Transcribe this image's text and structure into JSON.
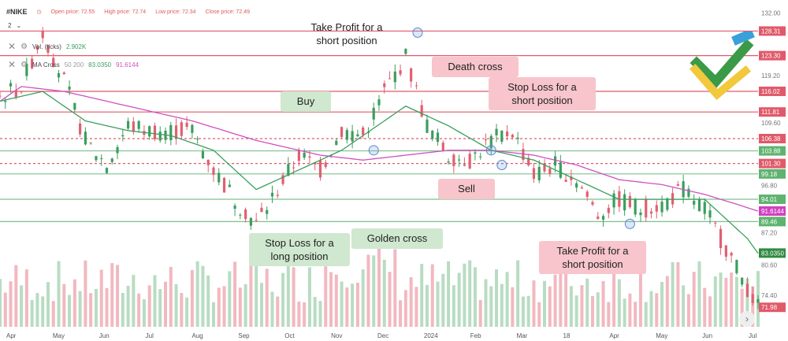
{
  "header": {
    "symbol": "#NIKE",
    "open_label": "Open price: 72.55",
    "high_label": "High price: 72.74",
    "low_label": "Low price: 72.34",
    "close_label": "Close price: 72.49",
    "interval": "2"
  },
  "indicators": {
    "volume": {
      "name": "Vol. (ticks)",
      "value": "2.902K"
    },
    "ma": {
      "name": "MA Cross",
      "params": "50 200",
      "fast_value": "83.0350",
      "slow_value": "91.6144"
    }
  },
  "colors": {
    "up": "#3b9e5e",
    "down": "#e06070",
    "fast_ma": "#3b9e5e",
    "slow_ma": "#d050c0",
    "line_red": "#e05a6a",
    "line_green": "#7fbf8f",
    "green_box": "#cfe8cf",
    "pink_box": "#f7c5cb"
  },
  "annotations": {
    "take_profit_top": "Take Profit for a short position",
    "death_cross": "Death cross",
    "stop_loss_short": "Stop Loss for a short position",
    "buy": "Buy",
    "sell": "Sell",
    "stop_loss_long": "Stop Loss for a long position",
    "golden_cross": "Golden cross",
    "take_profit_bottom": "Take Profit for a short position"
  },
  "chart_data": {
    "type": "candlestick",
    "x_ticks": [
      "Apr",
      "May",
      "Jun",
      "Jul",
      "Aug",
      "Sep",
      "Oct",
      "Nov",
      "Dec",
      "2024",
      "Feb",
      "Mar",
      "18",
      "Apr",
      "May",
      "Jun",
      "Jul"
    ],
    "y_ticks": [
      132.0,
      119.2,
      115.8,
      109.6,
      96.8,
      87.2,
      80.6,
      74.4,
      71.98
    ],
    "ylim": [
      68,
      134
    ],
    "levels": [
      {
        "value": 128.31,
        "color": "red",
        "style": "solid"
      },
      {
        "value": 123.3,
        "color": "red",
        "style": "solid"
      },
      {
        "value": 116.02,
        "color": "red",
        "style": "solid"
      },
      {
        "value": 111.81,
        "color": "red",
        "style": "solid"
      },
      {
        "value": 106.38,
        "color": "red",
        "style": "dashed"
      },
      {
        "value": 103.88,
        "color": "green",
        "style": "solid"
      },
      {
        "value": 101.3,
        "color": "red",
        "style": "dashed"
      },
      {
        "value": 99.18,
        "color": "green",
        "style": "solid"
      },
      {
        "value": 94.01,
        "color": "green",
        "style": "solid"
      },
      {
        "value": 89.46,
        "color": "green",
        "style": "solid"
      }
    ],
    "price_badges": [
      {
        "value": "128.31",
        "color": "red"
      },
      {
        "value": "123.30",
        "color": "red"
      },
      {
        "value": "116.02",
        "color": "red"
      },
      {
        "value": "111.81",
        "color": "red"
      },
      {
        "value": "106.38",
        "color": "red"
      },
      {
        "value": "103.88",
        "color": "green"
      },
      {
        "value": "101.30",
        "color": "red"
      },
      {
        "value": "99.18",
        "color": "green"
      },
      {
        "value": "94.01",
        "color": "green"
      },
      {
        "value": "91.6144",
        "color": "magenta"
      },
      {
        "value": "89.46",
        "color": "green"
      },
      {
        "value": "83.0350",
        "color": "darkgreen"
      },
      {
        "value": "71.98",
        "color": "red"
      }
    ],
    "price_path": [
      [
        0,
        115
      ],
      [
        4,
        117
      ],
      [
        8,
        128
      ],
      [
        12,
        118
      ],
      [
        16,
        106
      ],
      [
        20,
        101
      ],
      [
        24,
        109
      ],
      [
        28,
        108
      ],
      [
        32,
        108
      ],
      [
        36,
        108
      ],
      [
        40,
        100
      ],
      [
        44,
        94
      ],
      [
        48,
        89
      ],
      [
        52,
        96
      ],
      [
        56,
        103
      ],
      [
        60,
        100
      ],
      [
        64,
        108
      ],
      [
        68,
        107
      ],
      [
        72,
        116
      ],
      [
        76,
        123
      ],
      [
        80,
        109
      ],
      [
        84,
        103
      ],
      [
        88,
        102
      ],
      [
        92,
        106
      ],
      [
        96,
        108
      ],
      [
        100,
        99
      ],
      [
        104,
        101
      ],
      [
        108,
        98
      ],
      [
        112,
        91
      ],
      [
        116,
        94
      ],
      [
        120,
        92
      ],
      [
        124,
        93
      ],
      [
        128,
        96
      ],
      [
        132,
        92
      ],
      [
        136,
        84
      ],
      [
        140,
        76
      ],
      [
        142,
        72
      ]
    ],
    "ma_fast_path": [
      [
        0,
        114
      ],
      [
        8,
        116
      ],
      [
        16,
        110
      ],
      [
        24,
        108
      ],
      [
        32,
        107
      ],
      [
        40,
        104
      ],
      [
        48,
        96
      ],
      [
        56,
        100
      ],
      [
        64,
        104
      ],
      [
        72,
        110
      ],
      [
        76,
        113
      ],
      [
        84,
        109
      ],
      [
        92,
        104
      ],
      [
        100,
        102
      ],
      [
        108,
        98
      ],
      [
        116,
        94
      ],
      [
        124,
        94
      ],
      [
        132,
        94
      ],
      [
        136,
        90
      ],
      [
        140,
        86
      ],
      [
        142,
        83
      ]
    ],
    "ma_slow_path": [
      [
        0,
        114
      ],
      [
        4,
        117
      ],
      [
        12,
        116
      ],
      [
        24,
        113
      ],
      [
        36,
        110
      ],
      [
        48,
        106
      ],
      [
        60,
        103
      ],
      [
        68,
        102
      ],
      [
        76,
        103
      ],
      [
        84,
        104
      ],
      [
        92,
        104
      ],
      [
        100,
        103
      ],
      [
        108,
        101
      ],
      [
        116,
        98
      ],
      [
        124,
        97
      ],
      [
        132,
        95
      ],
      [
        138,
        93
      ],
      [
        142,
        91.6
      ]
    ]
  }
}
